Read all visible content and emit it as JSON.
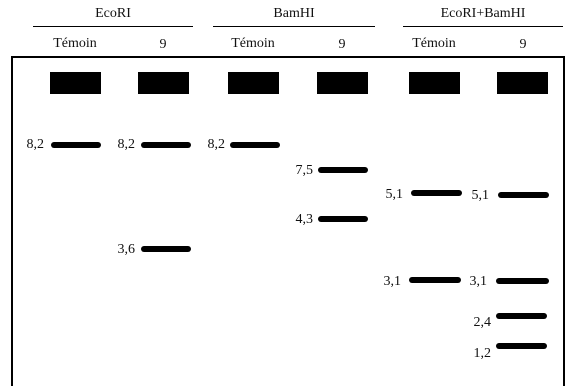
{
  "enzymes": [
    {
      "name": "EcoRI"
    },
    {
      "name": "BamHI"
    },
    {
      "name": "EcoRI+BamHI"
    }
  ],
  "lanes": [
    {
      "label": "Témoin",
      "bands": [
        {
          "size": "8,2"
        }
      ]
    },
    {
      "label": "9",
      "bands": [
        {
          "size": "8,2"
        },
        {
          "size": "3,6"
        }
      ]
    },
    {
      "label": "Témoin",
      "bands": [
        {
          "size": "8,2"
        }
      ]
    },
    {
      "label": "9",
      "bands": [
        {
          "size": "7,5"
        },
        {
          "size": "4,3"
        }
      ]
    },
    {
      "label": "Témoin",
      "bands": [
        {
          "size": "5,1"
        },
        {
          "size": "3,1"
        }
      ]
    },
    {
      "label": "9",
      "bands": [
        {
          "size": "5,1"
        },
        {
          "size": "3,1"
        },
        {
          "size": "2,4"
        },
        {
          "size": "1,2"
        }
      ]
    }
  ]
}
